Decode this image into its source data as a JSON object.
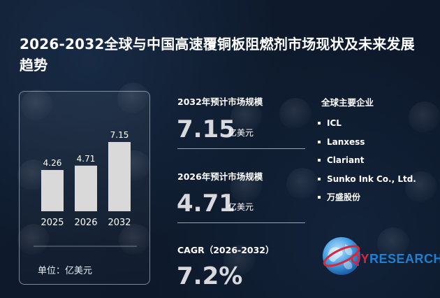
{
  "page": {
    "title": "2026-2032全球与中国高速覆铜板阻燃剂市场现状及未来发展趋势"
  },
  "chart_data": {
    "type": "bar",
    "categories": [
      "2025",
      "2026",
      "2032"
    ],
    "values": [
      4.26,
      4.71,
      7.15
    ],
    "value_labels": [
      "4.26",
      "4.71",
      "7.15"
    ],
    "unit_label": "单位：亿美元",
    "bar_color": "#d9d9d9",
    "grid": false,
    "legend": "none"
  },
  "metrics": {
    "m2032": {
      "label": "2032年预计市场规模",
      "value": "7.15",
      "unit": "亿美元"
    },
    "m2026": {
      "label": "2026年预计市场规模",
      "value": "4.71",
      "unit": "亿美元"
    },
    "cagr": {
      "label": "CAGR（2026-2032）",
      "value": "7.2%"
    }
  },
  "companies": {
    "title": "全球主要企业",
    "items": [
      "ICL",
      "Lanxess",
      "Clariant",
      "Sunko Ink Co., Ltd.",
      "万盛股份"
    ]
  },
  "logo": {
    "q": "QY",
    "rest": "RESEARCH"
  },
  "colors": {
    "background": "#0e1a2b",
    "value_text": "#d7d9dd",
    "logo_red": "#d9263a",
    "logo_blue": "#1f7fd0"
  }
}
